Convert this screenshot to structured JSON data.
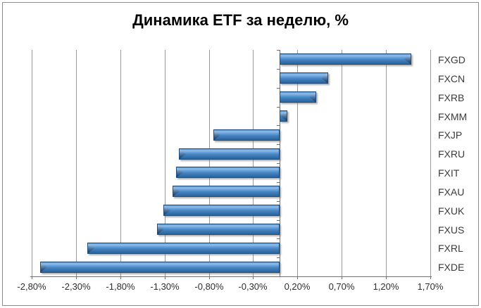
{
  "title": "Динамика ETF за неделю, %",
  "colors": {
    "background": "#ffffff",
    "frame_border": "#8c8c8c",
    "bar_fill_main": "#4684c2",
    "bar_fill_highlight": "#8fbde9",
    "bar_border": "#1e4d7b",
    "gridline": "#9a9a9a",
    "axis_line": "#707070",
    "tick_label": "#2e2e2e",
    "category_label": "#3a3a3a",
    "title_color": "#000000"
  },
  "chart_data": {
    "type": "bar",
    "orientation": "horizontal",
    "title": "Динамика ETF за неделю, %",
    "categories": [
      "FXGD",
      "FXCN",
      "FXRB",
      "FXMM",
      "FXJP",
      "FXRU",
      "FXIT",
      "FXAU",
      "FXUK",
      "FXUS",
      "FXRL",
      "FXDE"
    ],
    "values": [
      1.49,
      0.55,
      0.41,
      0.09,
      -0.75,
      -1.14,
      -1.17,
      -1.21,
      -1.31,
      -1.38,
      -2.17,
      -2.7
    ],
    "value_unit": "%",
    "xlim": [
      -2.8,
      1.7
    ],
    "x_tick_step": 0.5,
    "x_tick_labels": [
      "-2,80%",
      "-2,30%",
      "-1,80%",
      "-1,30%",
      "-0,80%",
      "-0,30%",
      "0,20%",
      "0,70%",
      "1,20%",
      "1,70%"
    ],
    "grid": true,
    "legend": "none",
    "category_labels_position": "right",
    "baseline": 0
  }
}
